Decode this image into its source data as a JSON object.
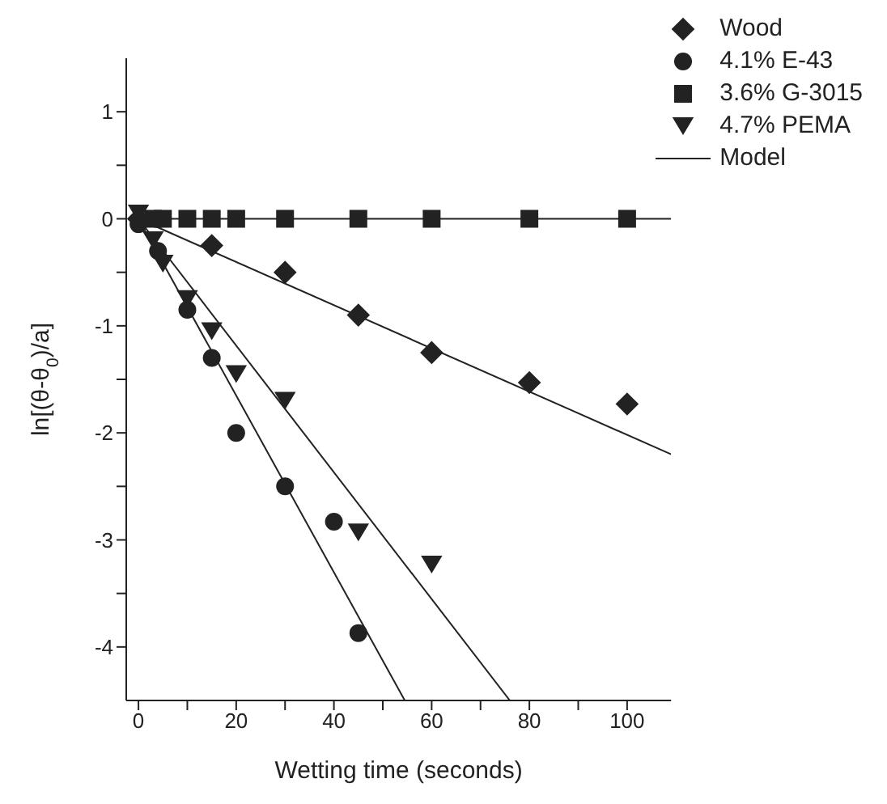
{
  "chart_data": {
    "type": "scatter",
    "xlabel": "Wetting time (seconds)",
    "ylabel": "ln[(θ-θ$_{0}$)/a]",
    "xlim": [
      -2.5,
      109
    ],
    "ylim": [
      -4.5,
      1.5
    ],
    "xticks": [
      0,
      {
        "value": 10,
        "label": null
      },
      20,
      {
        "value": 30,
        "label": null
      },
      40,
      {
        "value": 50,
        "label": null
      },
      60,
      {
        "value": 70,
        "label": null
      },
      80,
      {
        "value": 90,
        "label": null
      },
      100
    ],
    "yticks": [
      -4,
      {
        "value": -3.5,
        "label": null
      },
      -3,
      {
        "value": -2.5,
        "label": null
      },
      -2,
      {
        "value": -1.5,
        "label": null
      },
      -1,
      {
        "value": -0.5,
        "label": null
      },
      0,
      {
        "value": 0.5,
        "label": null
      },
      1
    ],
    "legend": "top right",
    "grid": false,
    "series": [
      {
        "name": "Wood",
        "marker": "diamond",
        "color": "#222222",
        "x": [
          0,
          3,
          5,
          15,
          30,
          45,
          60,
          80,
          100
        ],
        "values": [
          0,
          null,
          null,
          -0.25,
          -0.5,
          -0.9,
          -1.25,
          -1.53,
          -1.73
        ]
      },
      {
        "name": "4.1% E-43",
        "marker": "circle",
        "color": "#222222",
        "x": [
          0,
          3,
          4,
          10,
          15,
          20,
          30,
          40,
          45
        ],
        "values": [
          -0.05,
          null,
          -0.3,
          -0.85,
          -1.3,
          -2.0,
          -2.5,
          -2.83,
          -3.87
        ]
      },
      {
        "name": "3.6% G-3015",
        "marker": "square",
        "color": "#222222",
        "x": [
          3,
          5,
          10,
          15,
          20,
          30,
          45,
          60,
          80,
          100
        ],
        "values": [
          0,
          0,
          0,
          0,
          0,
          0,
          0,
          0,
          0,
          0
        ]
      },
      {
        "name": "4.7% PEMA",
        "marker": "triangle",
        "color": "#222222",
        "x": [
          0,
          3,
          5,
          10,
          15,
          20,
          30,
          45,
          60
        ],
        "values": [
          0.05,
          -0.2,
          -0.42,
          -0.75,
          -1.05,
          -1.45,
          -1.7,
          -2.93,
          -3.23
        ]
      },
      {
        "name": "Model",
        "type": "line",
        "marker": "none",
        "color": "#222222",
        "x": [
          0,
          109
        ],
        "values": [
          0,
          -2.2
        ]
      },
      {
        "type": "line",
        "marker": "none",
        "color": "#222222",
        "x": [
          0,
          54.5
        ],
        "values": [
          0,
          -4.5
        ]
      },
      {
        "type": "line",
        "marker": "none",
        "color": "#222222",
        "x": [
          0,
          109
        ],
        "values": [
          0,
          0
        ]
      },
      {
        "type": "line",
        "marker": "none",
        "color": "#222222",
        "x": [
          0,
          76
        ],
        "values": [
          0,
          -4.5
        ]
      }
    ]
  }
}
